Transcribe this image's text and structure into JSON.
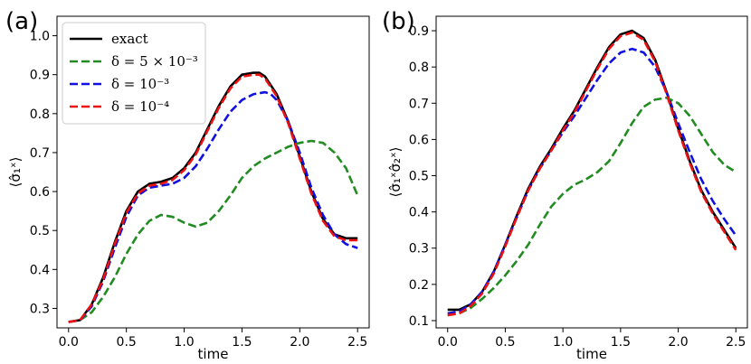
{
  "chart_data": [
    {
      "type": "line",
      "panel_label": "(a)",
      "xlabel": "time",
      "ylabel": "⟨σ̂₁ˣ⟩",
      "xlim": [
        -0.1,
        2.6
      ],
      "ylim": [
        0.25,
        1.05
      ],
      "xticks": [
        0.0,
        0.5,
        1.0,
        1.5,
        2.0,
        2.5
      ],
      "xtick_labels": [
        "0.0",
        "0.5",
        "1.0",
        "1.5",
        "2.0",
        "2.5"
      ],
      "yticks": [
        0.3,
        0.4,
        0.5,
        0.6,
        0.7,
        0.8,
        0.9,
        1.0
      ],
      "ytick_labels": [
        "0.3",
        "0.4",
        "0.5",
        "0.6",
        "0.7",
        "0.8",
        "0.9",
        "1.0"
      ],
      "grid": false,
      "legend": "top-left",
      "series": [
        {
          "name": "exact",
          "color": "#000000",
          "dash": "solid",
          "x": [
            0.0,
            0.1,
            0.2,
            0.3,
            0.4,
            0.5,
            0.6,
            0.7,
            0.8,
            0.9,
            1.0,
            1.1,
            1.2,
            1.3,
            1.4,
            1.5,
            1.6,
            1.65,
            1.7,
            1.8,
            1.9,
            2.0,
            2.1,
            2.2,
            2.3,
            2.4,
            2.5
          ],
          "y": [
            0.265,
            0.27,
            0.31,
            0.38,
            0.47,
            0.55,
            0.6,
            0.62,
            0.625,
            0.635,
            0.66,
            0.7,
            0.76,
            0.82,
            0.87,
            0.9,
            0.905,
            0.905,
            0.895,
            0.85,
            0.78,
            0.69,
            0.6,
            0.53,
            0.49,
            0.48,
            0.48
          ]
        },
        {
          "name": "δ = 5 × 10⁻³",
          "color": "#228b22",
          "dash": "dashed",
          "x": [
            0.0,
            0.1,
            0.2,
            0.3,
            0.4,
            0.5,
            0.6,
            0.7,
            0.8,
            0.9,
            1.0,
            1.1,
            1.2,
            1.3,
            1.4,
            1.5,
            1.6,
            1.7,
            1.8,
            1.9,
            2.0,
            2.1,
            2.2,
            2.3,
            2.4,
            2.5
          ],
          "y": [
            0.265,
            0.27,
            0.29,
            0.33,
            0.38,
            0.44,
            0.49,
            0.525,
            0.54,
            0.535,
            0.52,
            0.51,
            0.52,
            0.55,
            0.59,
            0.635,
            0.665,
            0.685,
            0.7,
            0.715,
            0.725,
            0.73,
            0.725,
            0.7,
            0.66,
            0.59
          ]
        },
        {
          "name": "δ = 10⁻³",
          "color": "#1010e0",
          "dash": "dashed",
          "x": [
            0.0,
            0.1,
            0.2,
            0.3,
            0.4,
            0.5,
            0.6,
            0.7,
            0.8,
            0.9,
            1.0,
            1.1,
            1.2,
            1.3,
            1.4,
            1.5,
            1.6,
            1.7,
            1.75,
            1.8,
            1.9,
            2.0,
            2.1,
            2.2,
            2.3,
            2.4,
            2.5
          ],
          "y": [
            0.265,
            0.27,
            0.305,
            0.37,
            0.455,
            0.535,
            0.59,
            0.61,
            0.615,
            0.62,
            0.635,
            0.665,
            0.71,
            0.76,
            0.805,
            0.835,
            0.85,
            0.855,
            0.85,
            0.835,
            0.78,
            0.7,
            0.61,
            0.54,
            0.49,
            0.465,
            0.455
          ]
        },
        {
          "name": "δ = 10⁻⁴",
          "color": "#ee1111",
          "dash": "dashed",
          "x": [
            0.0,
            0.1,
            0.2,
            0.3,
            0.4,
            0.5,
            0.6,
            0.7,
            0.8,
            0.9,
            1.0,
            1.1,
            1.2,
            1.3,
            1.4,
            1.5,
            1.6,
            1.65,
            1.7,
            1.8,
            1.9,
            2.0,
            2.1,
            2.2,
            2.3,
            2.4,
            2.5
          ],
          "y": [
            0.265,
            0.27,
            0.31,
            0.375,
            0.465,
            0.545,
            0.595,
            0.615,
            0.62,
            0.63,
            0.655,
            0.695,
            0.755,
            0.815,
            0.865,
            0.895,
            0.9,
            0.9,
            0.89,
            0.845,
            0.775,
            0.685,
            0.595,
            0.525,
            0.485,
            0.475,
            0.475
          ]
        }
      ]
    },
    {
      "type": "line",
      "panel_label": "(b)",
      "xlabel": "time",
      "ylabel": "⟨σ̂₁ˣσ̂₂ˣ⟩",
      "xlim": [
        -0.1,
        2.6
      ],
      "ylim": [
        0.08,
        0.94
      ],
      "xticks": [
        0.0,
        0.5,
        1.0,
        1.5,
        2.0,
        2.5
      ],
      "xtick_labels": [
        "0.0",
        "0.5",
        "1.0",
        "1.5",
        "2.0",
        "2.5"
      ],
      "yticks": [
        0.1,
        0.2,
        0.3,
        0.4,
        0.5,
        0.6,
        0.7,
        0.8,
        0.9
      ],
      "ytick_labels": [
        "0.1",
        "0.2",
        "0.3",
        "0.4",
        "0.5",
        "0.6",
        "0.7",
        "0.8",
        "0.9"
      ],
      "grid": false,
      "series": [
        {
          "name": "exact",
          "color": "#000000",
          "dash": "solid",
          "x": [
            0.0,
            0.1,
            0.2,
            0.3,
            0.4,
            0.5,
            0.6,
            0.7,
            0.8,
            0.9,
            1.0,
            1.1,
            1.2,
            1.3,
            1.4,
            1.5,
            1.6,
            1.7,
            1.8,
            1.9,
            2.0,
            2.1,
            2.2,
            2.3,
            2.4,
            2.5
          ],
          "y": [
            0.13,
            0.13,
            0.145,
            0.18,
            0.235,
            0.31,
            0.39,
            0.465,
            0.525,
            0.575,
            0.63,
            0.68,
            0.74,
            0.8,
            0.855,
            0.89,
            0.9,
            0.88,
            0.82,
            0.73,
            0.63,
            0.54,
            0.46,
            0.4,
            0.35,
            0.3
          ]
        },
        {
          "name": "δ = 5 × 10⁻³",
          "color": "#228b22",
          "dash": "dashed",
          "x": [
            0.0,
            0.1,
            0.2,
            0.3,
            0.4,
            0.5,
            0.6,
            0.7,
            0.8,
            0.9,
            1.0,
            1.1,
            1.2,
            1.3,
            1.4,
            1.5,
            1.6,
            1.7,
            1.8,
            1.9,
            2.0,
            2.1,
            2.2,
            2.3,
            2.4,
            2.5
          ],
          "y": [
            0.115,
            0.12,
            0.135,
            0.16,
            0.19,
            0.225,
            0.265,
            0.31,
            0.365,
            0.415,
            0.45,
            0.475,
            0.49,
            0.51,
            0.54,
            0.59,
            0.645,
            0.69,
            0.71,
            0.715,
            0.7,
            0.665,
            0.615,
            0.565,
            0.53,
            0.51
          ]
        },
        {
          "name": "δ = 10⁻³",
          "color": "#1010e0",
          "dash": "dashed",
          "x": [
            0.0,
            0.1,
            0.2,
            0.3,
            0.4,
            0.5,
            0.6,
            0.7,
            0.8,
            0.9,
            1.0,
            1.1,
            1.2,
            1.3,
            1.4,
            1.5,
            1.6,
            1.7,
            1.8,
            1.9,
            2.0,
            2.1,
            2.2,
            2.3,
            2.4,
            2.5
          ],
          "y": [
            0.12,
            0.125,
            0.145,
            0.18,
            0.235,
            0.31,
            0.385,
            0.46,
            0.52,
            0.57,
            0.62,
            0.665,
            0.715,
            0.765,
            0.81,
            0.84,
            0.85,
            0.84,
            0.8,
            0.73,
            0.645,
            0.565,
            0.49,
            0.43,
            0.38,
            0.335
          ]
        },
        {
          "name": "δ = 10⁻⁴",
          "color": "#ee1111",
          "dash": "dashed",
          "x": [
            0.0,
            0.1,
            0.2,
            0.3,
            0.4,
            0.5,
            0.6,
            0.7,
            0.8,
            0.9,
            1.0,
            1.1,
            1.2,
            1.3,
            1.4,
            1.5,
            1.6,
            1.7,
            1.8,
            1.9,
            2.0,
            2.1,
            2.2,
            2.3,
            2.4,
            2.5
          ],
          "y": [
            0.115,
            0.12,
            0.14,
            0.175,
            0.23,
            0.305,
            0.385,
            0.46,
            0.52,
            0.57,
            0.625,
            0.675,
            0.735,
            0.795,
            0.85,
            0.885,
            0.895,
            0.875,
            0.815,
            0.725,
            0.625,
            0.535,
            0.455,
            0.395,
            0.345,
            0.295
          ]
        }
      ]
    }
  ]
}
